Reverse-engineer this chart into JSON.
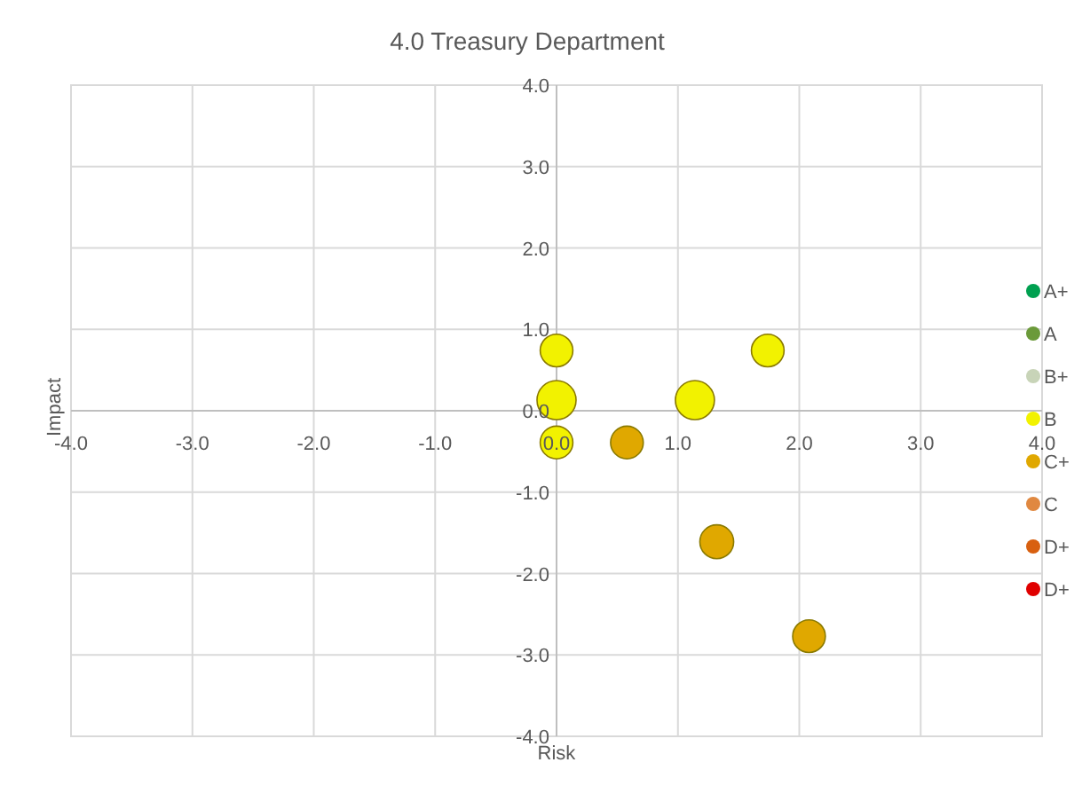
{
  "chart_data": {
    "type": "bubble",
    "title": "4.0 Treasury Department",
    "xlabel": "Risk",
    "ylabel": "Impact",
    "xlim": [
      -4,
      4
    ],
    "ylim": [
      -4,
      4
    ],
    "xticks": [
      {
        "value": -4,
        "label": "-4.0"
      },
      {
        "value": -3,
        "label": "-3.0"
      },
      {
        "value": -2,
        "label": "-2.0"
      },
      {
        "value": -1,
        "label": "-1.0"
      },
      {
        "value": 0,
        "label": "0.0"
      },
      {
        "value": 1,
        "label": "1.0"
      },
      {
        "value": 2,
        "label": "2.0"
      },
      {
        "value": 3,
        "label": "3.0"
      },
      {
        "value": 4,
        "label": "4.0"
      }
    ],
    "yticks": [
      {
        "value": -4,
        "label": "-4.0"
      },
      {
        "value": -3,
        "label": "-3.0"
      },
      {
        "value": -2,
        "label": "-2.0"
      },
      {
        "value": -1,
        "label": "-1.0"
      },
      {
        "value": 0,
        "label": "0.0"
      },
      {
        "value": 1,
        "label": "1.0"
      },
      {
        "value": 2,
        "label": "2.0"
      },
      {
        "value": 3,
        "label": "3.0"
      },
      {
        "value": 4,
        "label": "4.0"
      }
    ],
    "grid": true,
    "legend": "right",
    "series": [
      {
        "name": "A+",
        "color": "#00a050"
      },
      {
        "name": "A",
        "color": "#6b9a3a"
      },
      {
        "name": "B+",
        "color": "#c8d4b8"
      },
      {
        "name": "B",
        "color": "#f2f200",
        "x": [
          0,
          0,
          0,
          1.14,
          1.74
        ],
        "values": [
          0.74,
          0.13,
          -0.39,
          0.13,
          0.74
        ],
        "sizes": [
          0.7,
          1,
          0.7,
          1,
          0.7
        ]
      },
      {
        "name": "C+",
        "color": "#e0a800",
        "x": [
          0.58,
          1.32,
          2.08
        ],
        "values": [
          -0.39,
          -1.61,
          -2.77
        ],
        "sizes": [
          0.7,
          0.75,
          0.7
        ]
      },
      {
        "name": "C",
        "color": "#e08840"
      },
      {
        "name": "D+",
        "color": "#d86010"
      },
      {
        "name": "D+",
        "color": "#e00000"
      }
    ]
  }
}
